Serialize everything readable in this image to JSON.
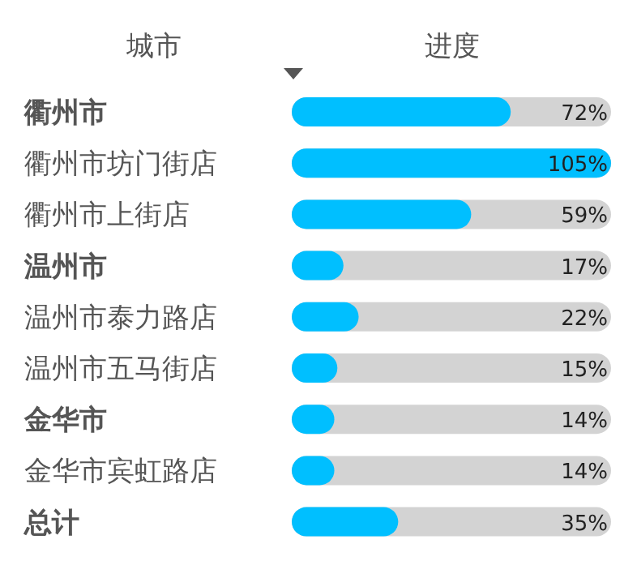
{
  "chart_data": {
    "type": "bar",
    "orientation": "horizontal",
    "ylabel": "城市",
    "xlabel": "进度",
    "categories": [
      "**衢州市**",
      "衢州市坊门街店",
      "衢州市上街店",
      "**温州市**",
      "温州市泰力路店",
      "温州市五马街店",
      "**金华市**",
      "金华市宾虹路店",
      "**总计**"
    ],
    "values": [
      72,
      105,
      59,
      17,
      22,
      15,
      14,
      14,
      35
    ],
    "value_labels": [
      "72%",
      "105%",
      "59%",
      "17%",
      "22%",
      "15%",
      "14%",
      "14%",
      "35%"
    ],
    "color": "#00bfff",
    "xlim": [
      0,
      105
    ]
  }
}
